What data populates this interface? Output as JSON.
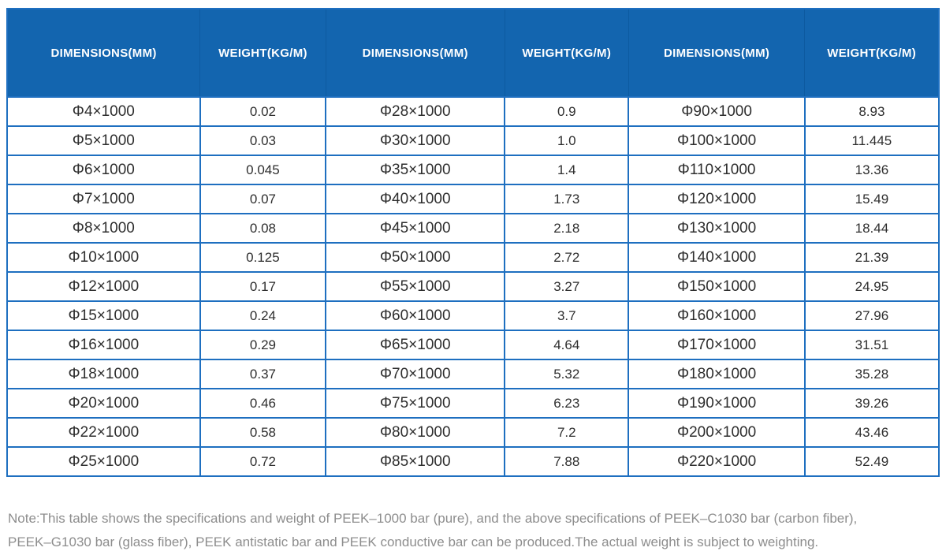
{
  "colors": {
    "header_bg": "#1365af",
    "header_text": "#ffffff",
    "header_divider": "#0d5aa0",
    "border": "#1e6fc0",
    "cell_text": "#2e2e2e",
    "note_text": "#8d8d8d",
    "background": "#ffffff"
  },
  "table": {
    "columns": [
      {
        "label": "DIMENSIONS(MM)",
        "kind": "dim",
        "width": "20.7%"
      },
      {
        "label": "WEIGHT(KG/M)",
        "kind": "weight",
        "width": "13.5%"
      },
      {
        "label": "DIMENSIONS(MM)",
        "kind": "dim",
        "width": "19.2%"
      },
      {
        "label": "WEIGHT(KG/M)",
        "kind": "weight",
        "width": "13.3%"
      },
      {
        "label": "DIMENSIONS(MM)",
        "kind": "dim",
        "width": "18.9%"
      },
      {
        "label": "WEIGHT(KG/M)",
        "kind": "weight",
        "width": "14.4%"
      }
    ],
    "rows": [
      [
        "Φ4×1000",
        "0.02",
        "Φ28×1000",
        "0.9",
        "Φ90×1000",
        "8.93"
      ],
      [
        "Φ5×1000",
        "0.03",
        "Φ30×1000",
        "1.0",
        "Φ100×1000",
        "11.445"
      ],
      [
        "Φ6×1000",
        "0.045",
        "Φ35×1000",
        "1.4",
        "Φ110×1000",
        "13.36"
      ],
      [
        "Φ7×1000",
        "0.07",
        "Φ40×1000",
        "1.73",
        "Φ120×1000",
        "15.49"
      ],
      [
        "Φ8×1000",
        "0.08",
        "Φ45×1000",
        "2.18",
        "Φ130×1000",
        "18.44"
      ],
      [
        "Φ10×1000",
        "0.125",
        "Φ50×1000",
        "2.72",
        "Φ140×1000",
        "21.39"
      ],
      [
        "Φ12×1000",
        "0.17",
        "Φ55×1000",
        "3.27",
        "Φ150×1000",
        "24.95"
      ],
      [
        "Φ15×1000",
        "0.24",
        "Φ60×1000",
        "3.7",
        "Φ160×1000",
        "27.96"
      ],
      [
        "Φ16×1000",
        "0.29",
        "Φ65×1000",
        "4.64",
        "Φ170×1000",
        "31.51"
      ],
      [
        "Φ18×1000",
        "0.37",
        "Φ70×1000",
        "5.32",
        "Φ180×1000",
        "35.28"
      ],
      [
        "Φ20×1000",
        "0.46",
        "Φ75×1000",
        "6.23",
        "Φ190×1000",
        "39.26"
      ],
      [
        "Φ22×1000",
        "0.58",
        "Φ80×1000",
        "7.2",
        "Φ200×1000",
        "43.46"
      ],
      [
        "Φ25×1000",
        "0.72",
        "Φ85×1000",
        "7.88",
        "Φ220×1000",
        "52.49"
      ]
    ]
  },
  "note": {
    "line1": "Note:This table shows the specifications and weight of PEEK–1000 bar (pure), and the above specifications of PEEK–C1030 bar (carbon fiber),",
    "line2": "PEEK–G1030 bar (glass fiber), PEEK antistatic bar and PEEK conductive bar can be produced.The actual weight is subject to weighting."
  }
}
